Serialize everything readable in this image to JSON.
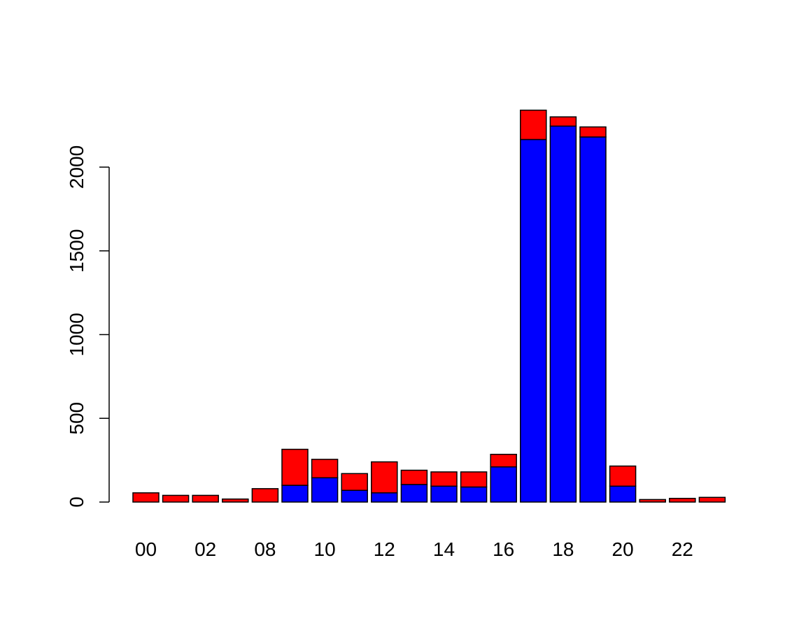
{
  "chart_data": {
    "type": "bar",
    "stacked": true,
    "title": "",
    "xlabel": "",
    "ylabel": "",
    "ylim": [
      0,
      2350
    ],
    "yticks": [
      0,
      500,
      1000,
      1500,
      2000
    ],
    "categories": [
      "00",
      "01",
      "02",
      "03",
      "08",
      "09",
      "10",
      "11",
      "12",
      "13",
      "14",
      "15",
      "16",
      "17",
      "18",
      "19",
      "20",
      "21",
      "22",
      "23"
    ],
    "x_tick_labels_shown": [
      "00",
      "02",
      "08",
      "10",
      "12",
      "14",
      "16",
      "18",
      "20",
      "22"
    ],
    "series": [
      {
        "color": "#0000ff",
        "values": [
          0,
          0,
          0,
          0,
          0,
          100,
          145,
          70,
          55,
          105,
          95,
          90,
          210,
          2165,
          2245,
          2180,
          95,
          0,
          0,
          0
        ]
      },
      {
        "color": "#ff0000",
        "values": [
          55,
          40,
          40,
          18,
          80,
          215,
          110,
          100,
          185,
          85,
          85,
          90,
          75,
          175,
          55,
          60,
          120,
          15,
          22,
          28
        ]
      }
    ]
  }
}
